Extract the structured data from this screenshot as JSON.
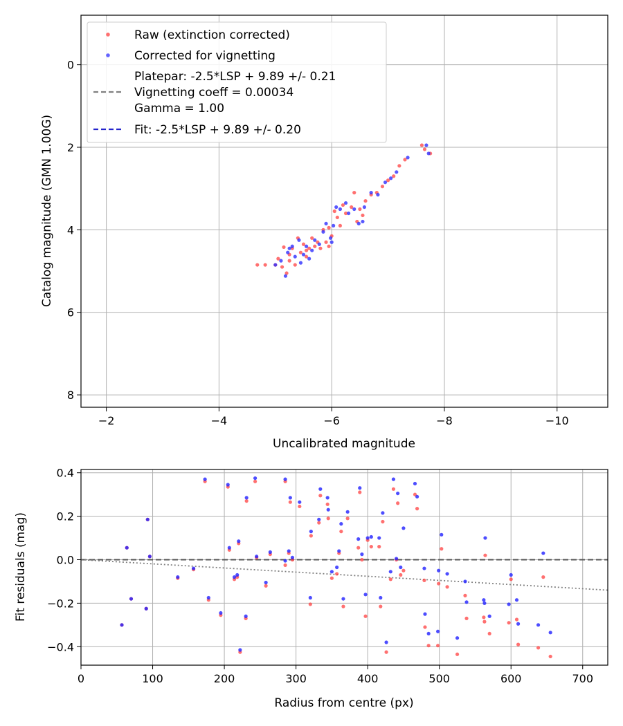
{
  "chart_data": [
    {
      "type": "scatter",
      "xlabel": "Uncalibrated magnitude",
      "ylabel": "Catalog magnitude (GMN 1.00G)",
      "xlim": [
        -1.55,
        -10.9
      ],
      "ylim": [
        8.3,
        -1.2
      ],
      "xticks": [
        -2,
        -4,
        -6,
        -8,
        -10
      ],
      "yticks": [
        0,
        2,
        4,
        6,
        8
      ],
      "xtick_labels": [
        "−2",
        "−4",
        "−6",
        "−8",
        "−10"
      ],
      "ytick_labels": [
        "0",
        "2",
        "4",
        "6",
        "8"
      ],
      "grid": true,
      "legend_position": "top-left",
      "legend": {
        "raw": "Raw (extinction corrected)",
        "corrected": "Corrected for vignetting",
        "platepar_lines": [
          "Platepar: -2.5*LSP + 9.89 +/- 0.21",
          "Vignetting coeff = 0.00034",
          "Gamma = 1.00"
        ],
        "fit": "Fit: -2.5*LSP + 9.89 +/- 0.20"
      },
      "fit_line": {
        "slope": -2.5,
        "intercept": 9.89,
        "color": "#2424cc"
      },
      "platepar_line": {
        "slope": -2.5,
        "intercept": 9.89,
        "color": "#7f7f7f"
      },
      "colors": {
        "raw": "#ff4040",
        "corrected": "#3030ff"
      },
      "raw_points": [
        [
          -4.68,
          4.85
        ],
        [
          -4.82,
          4.85
        ],
        [
          -5.0,
          4.85
        ],
        [
          -5.12,
          4.9
        ],
        [
          -5.05,
          4.7
        ],
        [
          -5.15,
          4.42
        ],
        [
          -5.2,
          5.05
        ],
        [
          -5.25,
          4.6
        ],
        [
          -5.3,
          4.45
        ],
        [
          -5.35,
          4.85
        ],
        [
          -5.4,
          4.2
        ],
        [
          -5.45,
          4.55
        ],
        [
          -5.5,
          4.35
        ],
        [
          -5.55,
          4.65
        ],
        [
          -5.6,
          4.45
        ],
        [
          -5.65,
          4.2
        ],
        [
          -5.7,
          4.4
        ],
        [
          -5.75,
          4.3
        ],
        [
          -5.8,
          4.45
        ],
        [
          -5.85,
          4.0
        ],
        [
          -5.9,
          4.3
        ],
        [
          -5.95,
          3.95
        ],
        [
          -6.0,
          4.15
        ],
        [
          -6.05,
          3.55
        ],
        [
          -6.1,
          3.7
        ],
        [
          -6.2,
          3.4
        ],
        [
          -6.25,
          3.6
        ],
        [
          -6.35,
          3.45
        ],
        [
          -6.4,
          3.1
        ],
        [
          -6.45,
          3.8
        ],
        [
          -6.5,
          3.5
        ],
        [
          -6.6,
          3.3
        ],
        [
          -6.7,
          3.15
        ],
        [
          -6.8,
          3.1
        ],
        [
          -6.9,
          2.95
        ],
        [
          -7.0,
          2.8
        ],
        [
          -7.1,
          2.7
        ],
        [
          -7.2,
          2.45
        ],
        [
          -7.3,
          2.3
        ],
        [
          -7.6,
          1.95
        ],
        [
          -7.65,
          2.05
        ],
        [
          -7.75,
          2.15
        ],
        [
          -5.55,
          4.5
        ],
        [
          -5.25,
          4.75
        ],
        [
          -5.95,
          4.4
        ],
        [
          -6.55,
          3.65
        ],
        [
          -6.15,
          3.9
        ]
      ],
      "corrected_points": [
        [
          -5.0,
          4.85
        ],
        [
          -5.1,
          4.75
        ],
        [
          -5.18,
          5.12
        ],
        [
          -5.22,
          4.55
        ],
        [
          -5.3,
          4.4
        ],
        [
          -5.35,
          4.65
        ],
        [
          -5.42,
          4.25
        ],
        [
          -5.5,
          4.6
        ],
        [
          -5.55,
          4.4
        ],
        [
          -5.6,
          4.7
        ],
        [
          -5.65,
          4.5
        ],
        [
          -5.7,
          4.25
        ],
        [
          -5.78,
          4.35
        ],
        [
          -5.85,
          4.05
        ],
        [
          -5.9,
          3.85
        ],
        [
          -5.98,
          4.2
        ],
        [
          -6.03,
          3.9
        ],
        [
          -6.08,
          3.45
        ],
        [
          -6.15,
          3.5
        ],
        [
          -6.25,
          3.35
        ],
        [
          -6.3,
          3.6
        ],
        [
          -6.4,
          3.5
        ],
        [
          -6.48,
          3.85
        ],
        [
          -6.58,
          3.45
        ],
        [
          -6.7,
          3.1
        ],
        [
          -6.82,
          3.15
        ],
        [
          -6.95,
          2.85
        ],
        [
          -7.05,
          2.75
        ],
        [
          -7.15,
          2.6
        ],
        [
          -7.35,
          2.25
        ],
        [
          -7.68,
          1.95
        ],
        [
          -7.72,
          2.15
        ],
        [
          -5.45,
          4.8
        ],
        [
          -5.25,
          4.45
        ],
        [
          -6.0,
          4.3
        ],
        [
          -6.55,
          3.8
        ]
      ]
    },
    {
      "type": "scatter",
      "xlabel": "Radius from centre (px)",
      "ylabel": "Fit residuals (mag)",
      "xlim": [
        0,
        735
      ],
      "ylim": [
        -0.485,
        0.415
      ],
      "xticks": [
        0,
        100,
        200,
        300,
        400,
        500,
        600,
        700
      ],
      "yticks": [
        0.4,
        0.2,
        0.0,
        -0.2,
        -0.4
      ],
      "xtick_labels": [
        "0",
        "100",
        "200",
        "300",
        "400",
        "500",
        "600",
        "700"
      ],
      "ytick_labels": [
        "0.4",
        "0.2",
        "0.0",
        "−0.2",
        "−0.4"
      ],
      "grid": true,
      "zero_line": {
        "y": 0.0,
        "color": "#555555"
      },
      "vignetting_curve": {
        "x_start": 0,
        "x_end": 735,
        "y_start": 0.0,
        "y_end": -0.14,
        "color": "#808080"
      },
      "colors": {
        "raw": "#ff4040",
        "corrected": "#2020ff"
      },
      "raw_points": [
        [
          57,
          -0.3
        ],
        [
          64,
          0.055
        ],
        [
          70,
          -0.18
        ],
        [
          91,
          -0.225
        ],
        [
          93,
          0.185
        ],
        [
          96,
          0.015
        ],
        [
          135,
          -0.085
        ],
        [
          157,
          -0.045
        ],
        [
          173,
          0.36
        ],
        [
          178,
          -0.185
        ],
        [
          195,
          -0.255
        ],
        [
          205,
          0.335
        ],
        [
          207,
          0.045
        ],
        [
          214,
          -0.09
        ],
        [
          218,
          -0.08
        ],
        [
          220,
          0.075
        ],
        [
          222,
          -0.425
        ],
        [
          230,
          -0.27
        ],
        [
          231,
          0.27
        ],
        [
          243,
          0.36
        ],
        [
          245,
          0.01
        ],
        [
          258,
          -0.12
        ],
        [
          264,
          0.025
        ],
        [
          285,
          0.36
        ],
        [
          285,
          -0.025
        ],
        [
          290,
          0.03
        ],
        [
          292,
          0.265
        ],
        [
          295,
          0.0
        ],
        [
          305,
          0.245
        ],
        [
          320,
          -0.205
        ],
        [
          321,
          0.11
        ],
        [
          332,
          0.17
        ],
        [
          334,
          0.295
        ],
        [
          344,
          0.255
        ],
        [
          345,
          0.19
        ],
        [
          350,
          -0.085
        ],
        [
          357,
          -0.065
        ],
        [
          360,
          0.03
        ],
        [
          363,
          0.13
        ],
        [
          366,
          -0.215
        ],
        [
          372,
          0.19
        ],
        [
          387,
          0.055
        ],
        [
          389,
          0.31
        ],
        [
          392,
          0.0
        ],
        [
          397,
          -0.26
        ],
        [
          400,
          0.09
        ],
        [
          405,
          0.06
        ],
        [
          416,
          0.06
        ],
        [
          418,
          -0.215
        ],
        [
          421,
          0.175
        ],
        [
          426,
          -0.425
        ],
        [
          432,
          -0.09
        ],
        [
          436,
          0.325
        ],
        [
          440,
          0.0
        ],
        [
          442,
          0.26
        ],
        [
          446,
          -0.07
        ],
        [
          450,
          -0.05
        ],
        [
          466,
          0.3
        ],
        [
          469,
          0.235
        ],
        [
          479,
          -0.095
        ],
        [
          480,
          -0.31
        ],
        [
          485,
          -0.395
        ],
        [
          498,
          -0.395
        ],
        [
          499,
          -0.11
        ],
        [
          503,
          0.05
        ],
        [
          511,
          -0.125
        ],
        [
          525,
          -0.435
        ],
        [
          536,
          -0.165
        ],
        [
          538,
          -0.27
        ],
        [
          562,
          -0.265
        ],
        [
          564,
          0.02
        ],
        [
          570,
          -0.34
        ],
        [
          597,
          -0.29
        ],
        [
          600,
          -0.09
        ],
        [
          608,
          -0.275
        ],
        [
          610,
          -0.39
        ],
        [
          638,
          -0.405
        ],
        [
          645,
          -0.08
        ],
        [
          655,
          -0.445
        ],
        [
          563,
          -0.285
        ]
      ],
      "corrected_points": [
        [
          57,
          -0.3
        ],
        [
          64,
          0.055
        ],
        [
          70,
          -0.18
        ],
        [
          91,
          -0.225
        ],
        [
          93,
          0.185
        ],
        [
          96,
          0.015
        ],
        [
          135,
          -0.08
        ],
        [
          157,
          -0.04
        ],
        [
          173,
          0.37
        ],
        [
          178,
          -0.175
        ],
        [
          195,
          -0.245
        ],
        [
          205,
          0.345
        ],
        [
          207,
          0.055
        ],
        [
          214,
          -0.08
        ],
        [
          218,
          -0.07
        ],
        [
          220,
          0.085
        ],
        [
          222,
          -0.415
        ],
        [
          230,
          -0.26
        ],
        [
          231,
          0.285
        ],
        [
          243,
          0.375
        ],
        [
          245,
          0.015
        ],
        [
          258,
          -0.105
        ],
        [
          264,
          0.035
        ],
        [
          285,
          0.37
        ],
        [
          285,
          -0.005
        ],
        [
          290,
          0.04
        ],
        [
          292,
          0.285
        ],
        [
          295,
          0.01
        ],
        [
          305,
          0.265
        ],
        [
          320,
          -0.175
        ],
        [
          321,
          0.13
        ],
        [
          332,
          0.185
        ],
        [
          334,
          0.325
        ],
        [
          344,
          0.285
        ],
        [
          345,
          0.23
        ],
        [
          350,
          -0.055
        ],
        [
          357,
          -0.035
        ],
        [
          360,
          0.04
        ],
        [
          363,
          0.165
        ],
        [
          366,
          -0.18
        ],
        [
          372,
          0.22
        ],
        [
          387,
          0.095
        ],
        [
          389,
          0.33
        ],
        [
          392,
          0.025
        ],
        [
          397,
          -0.16
        ],
        [
          400,
          0.1
        ],
        [
          405,
          0.105
        ],
        [
          416,
          0.1
        ],
        [
          418,
          -0.175
        ],
        [
          421,
          0.215
        ],
        [
          426,
          -0.38
        ],
        [
          432,
          -0.055
        ],
        [
          436,
          0.37
        ],
        [
          440,
          0.005
        ],
        [
          442,
          0.305
        ],
        [
          446,
          -0.035
        ],
        [
          450,
          0.145
        ],
        [
          466,
          0.35
        ],
        [
          469,
          0.29
        ],
        [
          479,
          -0.04
        ],
        [
          480,
          -0.25
        ],
        [
          485,
          -0.34
        ],
        [
          498,
          -0.33
        ],
        [
          499,
          -0.05
        ],
        [
          503,
          0.115
        ],
        [
          511,
          -0.065
        ],
        [
          525,
          -0.36
        ],
        [
          536,
          -0.1
        ],
        [
          538,
          -0.195
        ],
        [
          562,
          -0.185
        ],
        [
          564,
          0.1
        ],
        [
          570,
          -0.26
        ],
        [
          597,
          -0.205
        ],
        [
          600,
          -0.07
        ],
        [
          608,
          -0.185
        ],
        [
          610,
          -0.295
        ],
        [
          638,
          -0.3
        ],
        [
          645,
          0.03
        ],
        [
          655,
          -0.335
        ],
        [
          563,
          -0.2
        ]
      ]
    }
  ]
}
